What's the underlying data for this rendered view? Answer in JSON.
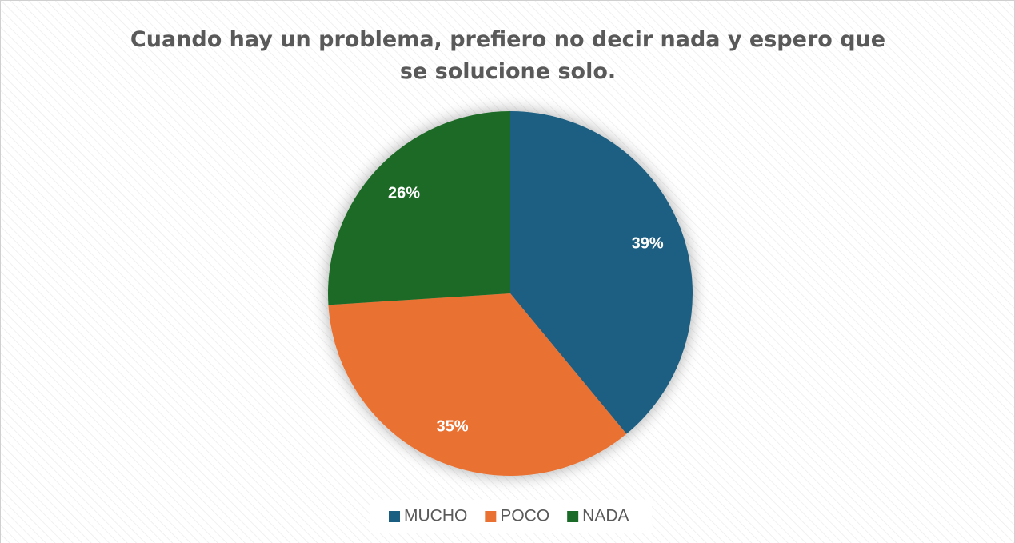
{
  "chart_data": {
    "type": "pie",
    "title": "Cuando hay un problema, prefiero no decir nada y espero que se solucione solo.",
    "categories": [
      "MUCHO",
      "POCO",
      "NADA"
    ],
    "values": [
      39,
      35,
      26
    ],
    "value_labels": [
      "39%",
      "35%",
      "26%"
    ],
    "colors": [
      "#1a5f82",
      "#e97132",
      "#1b6b28"
    ],
    "legend": "bottom"
  }
}
